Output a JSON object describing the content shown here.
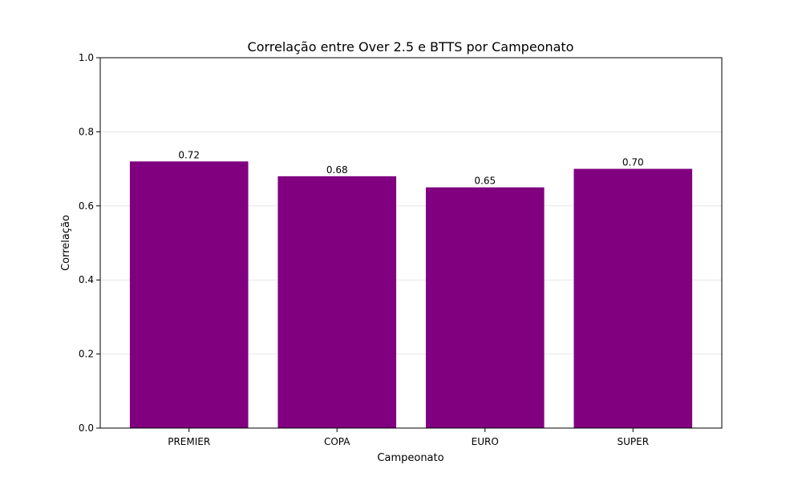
{
  "chart_data": {
    "type": "bar",
    "title": "Correlação entre Over 2.5 e BTTS por Campeonato",
    "xlabel": "Campeonato",
    "ylabel": "Correlação",
    "categories": [
      "PREMIER",
      "COPA",
      "EURO",
      "SUPER"
    ],
    "values": [
      0.72,
      0.68,
      0.65,
      0.7
    ],
    "data_labels": [
      "0.72",
      "0.68",
      "0.65",
      "0.70"
    ],
    "ylim": [
      0,
      1.0
    ],
    "yticks": [
      0.0,
      0.2,
      0.4,
      0.6,
      0.8,
      1.0
    ],
    "ytick_labels": [
      "0.0",
      "0.2",
      "0.4",
      "0.6",
      "0.8",
      "1.0"
    ],
    "grid": "horizontal",
    "bar_color": "#800080"
  }
}
